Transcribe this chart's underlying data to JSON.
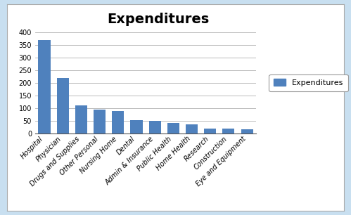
{
  "title": "Expenditures",
  "categories": [
    "Hospital",
    "Physician",
    "Drugs and Supplies",
    "Other Personal",
    "Nursing Home",
    "Dental",
    "Admin & Insurance",
    "Public Health",
    "Home Health",
    "Research",
    "Construction",
    "Eye and Equipment"
  ],
  "values": [
    370,
    220,
    110,
    95,
    88,
    52,
    50,
    42,
    35,
    18,
    18,
    15
  ],
  "bar_color": "#4F81BD",
  "legend_label": "Expenditures",
  "ylim": [
    0,
    400
  ],
  "yticks": [
    0,
    50,
    100,
    150,
    200,
    250,
    300,
    350,
    400
  ],
  "chart_bg": "#FFFFFF",
  "outer_bg": "#C8DFF0",
  "inner_border": "#FFFFFF",
  "grid_color": "#B0B0B0",
  "title_fontsize": 14,
  "tick_fontsize": 7,
  "legend_fontsize": 8
}
